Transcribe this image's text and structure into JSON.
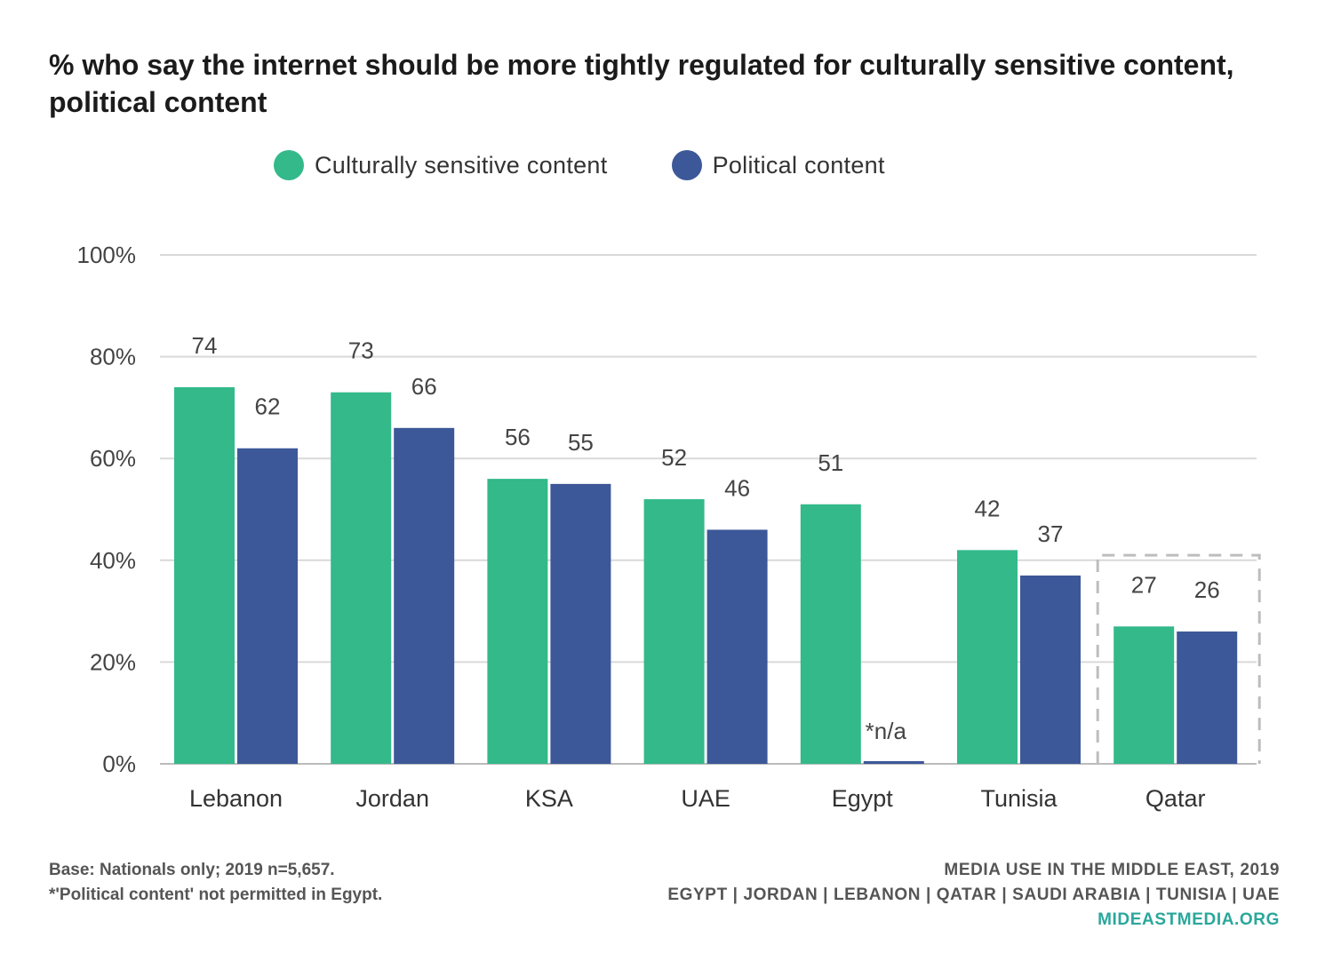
{
  "title": "% who say the internet should be more tightly regulated for culturally sensitive content, political content",
  "colors": {
    "culturally": "#33b98a",
    "political": "#3c5898",
    "grid": "#d9d9d9",
    "axis": "#bbbbbb",
    "qatar_box": "#bdbdbd",
    "site": "#2aa79b"
  },
  "chart_data": {
    "type": "bar",
    "categories": [
      "Lebanon",
      "Jordan",
      "KSA",
      "UAE",
      "Egypt",
      "Tunisia",
      "Qatar"
    ],
    "series": [
      {
        "name": "Culturally sensitive content",
        "values": [
          74,
          73,
          56,
          52,
          51,
          42,
          27
        ]
      },
      {
        "name": "Political content",
        "values": [
          62,
          66,
          55,
          46,
          null,
          37,
          26
        ]
      }
    ],
    "data_labels": [
      [
        "74",
        "73",
        "56",
        "52",
        "51",
        "42",
        "27"
      ],
      [
        "62",
        "66",
        "55",
        "46",
        "*n/a",
        "37",
        "26"
      ]
    ],
    "y_ticks": [
      "0%",
      "20%",
      "40%",
      "60%",
      "80%",
      "100%"
    ],
    "ylim": [
      0,
      100
    ],
    "grid": true,
    "legend_position": "top-center",
    "highlighted_category": "Qatar"
  },
  "footer": {
    "base_note": "Base: Nationals only; 2019 n=5,657.",
    "egypt_note": "*'Political content' not permitted in Egypt.",
    "source_title": "MEDIA USE IN THE MIDDLE EAST, 2019",
    "countries": "EGYPT | JORDAN | LEBANON | QATAR | SAUDI ARABIA | TUNISIA | UAE",
    "site": "MIDEASTMEDIA.ORG"
  }
}
